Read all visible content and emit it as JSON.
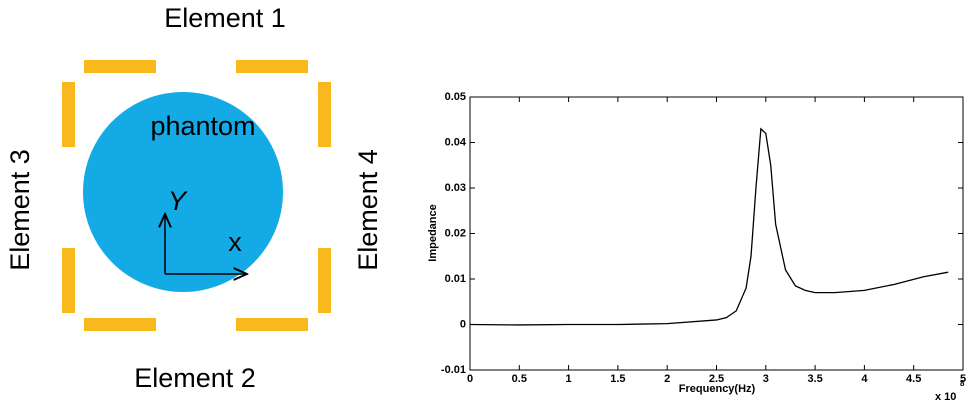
{
  "diagram": {
    "element_1": "Element 1",
    "element_2": "Element 2",
    "element_3": "Element 3",
    "element_4": "Element 4",
    "phantom": "phantom",
    "axis_y": "Y",
    "axis_x": "x"
  },
  "chart_data": {
    "type": "line",
    "xlabel": "Frequency(Hz)",
    "ylabel": "Impedance",
    "x_multiplier": {
      "base": "x 10",
      "exponent": "8"
    },
    "x": [
      0,
      0.5,
      1,
      1.5,
      2,
      2.5,
      2.6,
      2.7,
      2.8,
      2.85,
      2.9,
      2.95,
      3.0,
      3.05,
      3.1,
      3.2,
      3.3,
      3.4,
      3.5,
      3.7,
      4.0,
      4.3,
      4.6,
      4.85
    ],
    "series": [
      {
        "name": "Impedance",
        "color": "#000000",
        "values": [
          0,
          -0.0001,
          0,
          0,
          0.0002,
          0.001,
          0.0015,
          0.003,
          0.008,
          0.015,
          0.03,
          0.043,
          0.042,
          0.035,
          0.022,
          0.012,
          0.0085,
          0.0075,
          0.007,
          0.007,
          0.0075,
          0.0088,
          0.0105,
          0.0115
        ]
      }
    ],
    "xlim": [
      0,
      5
    ],
    "xticks": [
      0,
      0.5,
      1,
      1.5,
      2,
      2.5,
      3,
      3.5,
      4,
      4.5,
      5
    ],
    "ylim": [
      -0.01,
      0.05
    ],
    "yticks": [
      -0.01,
      0,
      0.01,
      0.02,
      0.03,
      0.04,
      0.05
    ]
  }
}
